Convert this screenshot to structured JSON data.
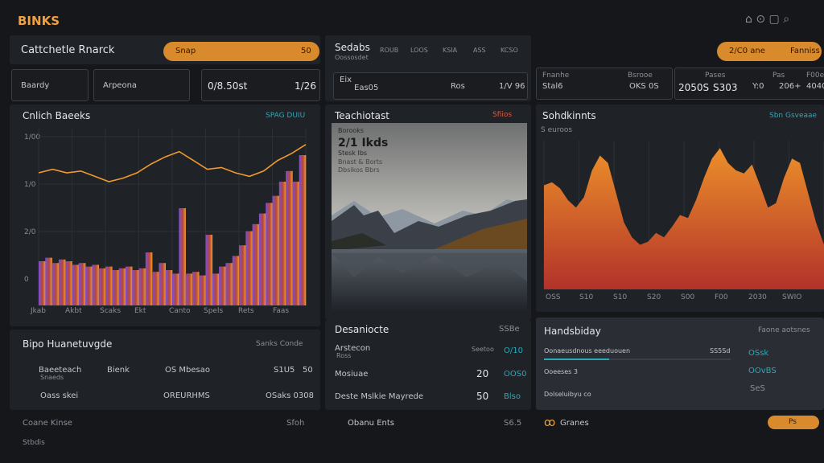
{
  "header": {
    "logo": "BINKS"
  },
  "left": {
    "title": "Cattchetle Rnarck",
    "search_placeholder": "Snap",
    "search_value": "50",
    "stats": [
      "Baardy",
      "Arpeona",
      "0/8.50st",
      "1/26"
    ],
    "chart": {
      "title": "Cnlich Baeeks",
      "link": "SPAG DUIU",
      "y_labels": [
        "1/00",
        "1/0",
        "2/0",
        "0"
      ],
      "x_labels": [
        "Jkab",
        "Akbt",
        "Scaks",
        "Ekt",
        "Canto",
        "Spels",
        "Rets",
        "Faas"
      ],
      "line_values": [
        75,
        77,
        75,
        76,
        73,
        70,
        72,
        75,
        80,
        84,
        87,
        82,
        77,
        78,
        75,
        73,
        76,
        82,
        86,
        91
      ],
      "bar_values": [
        25,
        27,
        24,
        26,
        25,
        23,
        24,
        22,
        23,
        21,
        22,
        20,
        21,
        22,
        20,
        21,
        30,
        19,
        24,
        20,
        18,
        55,
        18,
        19,
        17,
        40,
        18,
        22,
        24,
        28,
        34,
        42,
        46,
        52,
        58,
        62,
        70,
        76,
        70,
        85
      ]
    },
    "list": {
      "title": "Bipo Huanetuvgde",
      "filter": "Sanks Conde",
      "rows": [
        [
          "Baeeteach",
          "Snaeds",
          "Bienk",
          "OS Mbesao",
          "S1U5",
          "50"
        ],
        [
          "Oass skei",
          "OREURHMS",
          "OSaks 0308"
        ]
      ]
    },
    "footer": "Coane Kinse",
    "footer_right": "Sfoh",
    "status": "Stbdis"
  },
  "middle": {
    "title": "Sedabs",
    "subtitle": "Oossosdet",
    "tabs": [
      "ROUB",
      "LOOS",
      "KSIA",
      "ASS",
      "KCSO"
    ],
    "row": [
      "Eix",
      "Eas05",
      "Ros",
      "1/V 96"
    ],
    "image_title": "Teachiotast",
    "image_tag": "Sfiios",
    "image_caption": [
      "Borooks",
      "2/1 Ikds",
      "Stesk Ibs",
      "Bnast & Borts",
      "Dbsikos Bbrs"
    ],
    "section_title": "Desaniocte",
    "section_tag": "SSBe",
    "rows": [
      [
        "Arstecon",
        "Ross",
        "Seetoo",
        "O/10"
      ],
      [
        "Mosiuae",
        "20",
        "OOS0"
      ],
      [
        "Deste Mslkie Mayrede",
        "50",
        "Blso"
      ]
    ],
    "footer": "Obanu Ents",
    "footer_value": "S6.5"
  },
  "right": {
    "buttons": [
      "2/C0 ane",
      "Fanniss"
    ],
    "stats": [
      "Fnanhe",
      "Stal6",
      "Bsrooe",
      "OKS 0S",
      "Pases",
      "2050S",
      "S303",
      "Pas",
      "Y:0",
      "206+",
      "F00e",
      "4040"
    ],
    "chart": {
      "title": "Sohdkinnts",
      "link": "Sbn Gsveaae",
      "subtitle": "S euroos",
      "x_labels": [
        "OSS",
        "S10",
        "S10",
        "S20",
        "S00",
        "F00",
        "2030",
        "SWIO"
      ],
      "values": [
        70,
        72,
        68,
        60,
        55,
        62,
        80,
        90,
        85,
        65,
        45,
        35,
        30,
        32,
        38,
        35,
        42,
        50,
        48,
        60,
        75,
        88,
        95,
        85,
        80,
        78,
        84,
        70,
        55,
        58,
        75,
        88,
        85,
        65,
        45,
        30
      ]
    },
    "panel": {
      "title": "Handsbiday",
      "link": "Faone aotsnes",
      "rows": [
        [
          "Oonaeusdnous eeeduouen",
          "SS5Sd",
          "OSsk"
        ],
        [
          "Ooeeses 3",
          "OOvBS"
        ],
        [
          "Dolseluibyu co",
          "SeS"
        ]
      ]
    },
    "footer": "Granes",
    "pill": "Ps"
  }
}
